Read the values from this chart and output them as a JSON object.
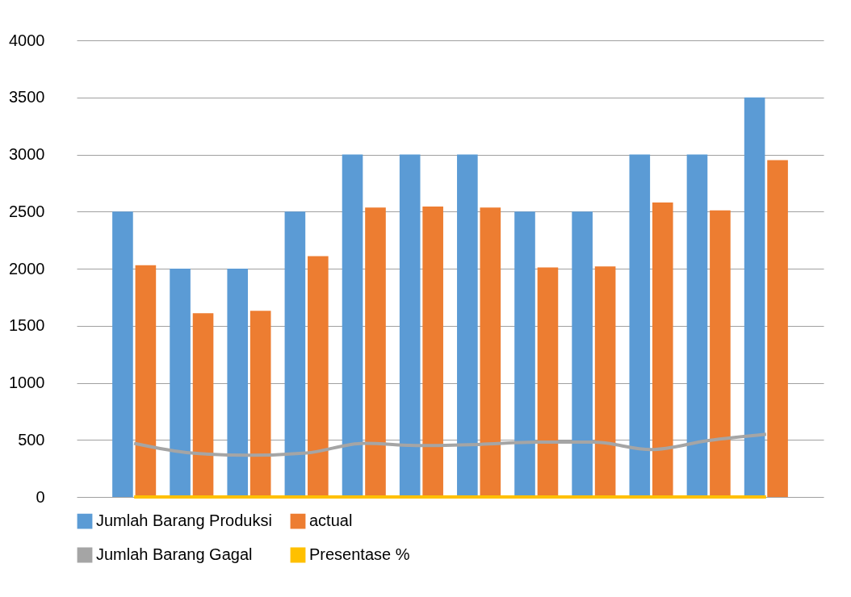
{
  "chart_data": {
    "type": "bar",
    "categories": [
      null,
      null,
      null,
      null,
      null,
      null,
      null,
      null,
      null,
      null,
      null,
      null
    ],
    "series": [
      {
        "name": "Jumlah Barang Produksi",
        "color": "#5b9bd5",
        "values": [
          2500,
          2000,
          2000,
          2500,
          3000,
          3000,
          3000,
          2500,
          2500,
          3000,
          3000,
          3500
        ]
      },
      {
        "name": "actual",
        "color": "#ed7d31",
        "values": [
          2030,
          1610,
          1630,
          2110,
          2535,
          2545,
          2535,
          2010,
          2020,
          2580,
          2510,
          2950
        ]
      },
      {
        "name": "Jumlah Barang Gagal",
        "type": "line",
        "color": "#a5a5a5",
        "values": [
          470,
          385,
          365,
          385,
          470,
          450,
          460,
          480,
          480,
          415,
          495,
          550
        ]
      },
      {
        "name": "Presentase %",
        "type": "line",
        "color": "#ffc000",
        "values": [
          0,
          0,
          0,
          0,
          0,
          0,
          0,
          0,
          0,
          0,
          0,
          0
        ]
      }
    ],
    "ylim": [
      0,
      4000
    ],
    "yticks": [
      0,
      500,
      1000,
      1500,
      2000,
      2500,
      3000,
      3500,
      4000
    ],
    "grid": "y",
    "legend": "bottom",
    "tick_labels": "y"
  }
}
